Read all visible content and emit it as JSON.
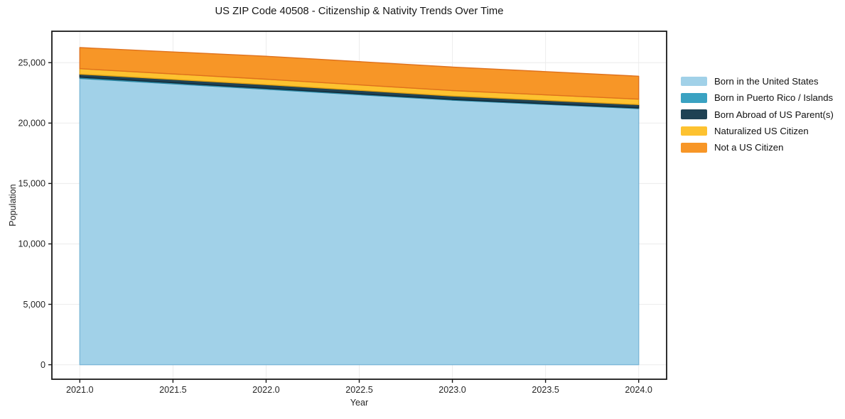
{
  "chart_data": {
    "type": "area",
    "stacked": true,
    "title": "US ZIP Code 40508 - Citizenship & Nativity Trends Over Time",
    "xlabel": "Year",
    "ylabel": "Population",
    "x": [
      2021,
      2022,
      2023,
      2024
    ],
    "series": [
      {
        "name": "Born in the United States",
        "color": "#a1d1e8",
        "edge_color": "#7db8d8",
        "values": [
          23700,
          22800,
          21900,
          21200
        ]
      },
      {
        "name": "Born in Puerto Rico / Islands",
        "color": "#3aa2c2",
        "edge_color": "#2b86a2",
        "values": [
          100,
          80,
          60,
          50
        ]
      },
      {
        "name": "Born Abroad of US Parent(s)",
        "color": "#1f4254",
        "edge_color": "#122835",
        "values": [
          250,
          300,
          280,
          280
        ]
      },
      {
        "name": "Naturalized US Citizen",
        "color": "#fdc230",
        "edge_color": "#e2a112",
        "values": [
          450,
          450,
          450,
          450
        ]
      },
      {
        "name": "Not a US Citizen",
        "color": "#f79627",
        "edge_color": "#df711c",
        "values": [
          1750,
          1900,
          1950,
          1900
        ]
      }
    ],
    "totals": [
      26250,
      25530,
      24640,
      23880
    ],
    "xlim": [
      2020.85,
      2024.15
    ],
    "ylim": [
      -1200,
      27600
    ],
    "xticks": [
      {
        "v": 2021.0,
        "label": "2021.0"
      },
      {
        "v": 2021.5,
        "label": "2021.5"
      },
      {
        "v": 2022.0,
        "label": "2022.0"
      },
      {
        "v": 2022.5,
        "label": "2022.5"
      },
      {
        "v": 2023.0,
        "label": "2023.0"
      },
      {
        "v": 2023.5,
        "label": "2023.5"
      },
      {
        "v": 2024.0,
        "label": "2024.0"
      }
    ],
    "yticks": [
      {
        "v": 0,
        "label": "0"
      },
      {
        "v": 5000,
        "label": "5,000"
      },
      {
        "v": 10000,
        "label": "10,000"
      },
      {
        "v": 15000,
        "label": "15,000"
      },
      {
        "v": 20000,
        "label": "20,000"
      },
      {
        "v": 25000,
        "label": "25,000"
      }
    ],
    "grid": true,
    "grid_color": "#ececec",
    "axis_color": "#1a1a1a",
    "tick_label_color": "#262626",
    "legend_position": "right",
    "legend_frame": false
  }
}
